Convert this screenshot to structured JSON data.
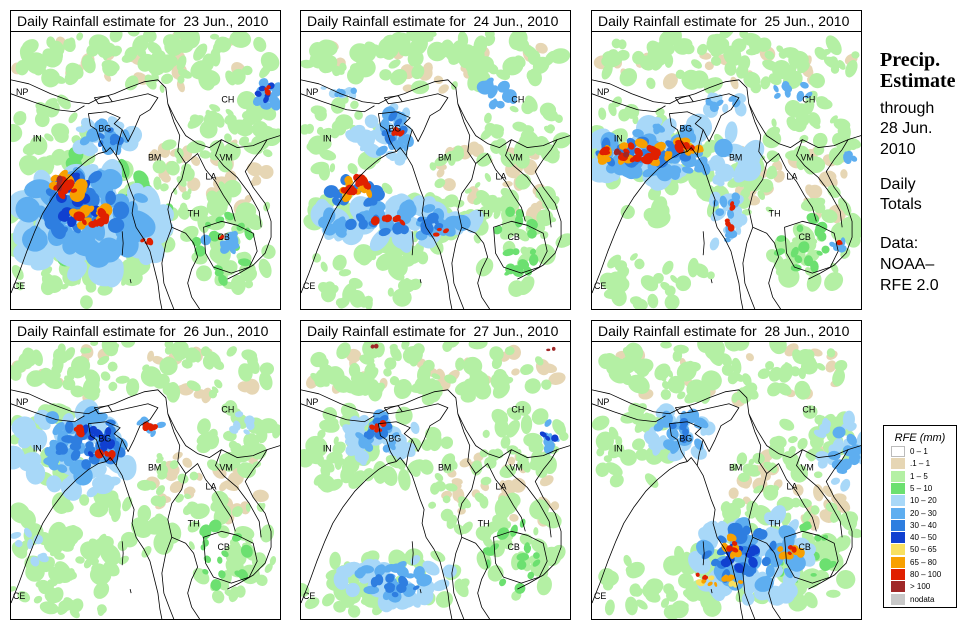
{
  "panels": [
    {
      "title": "Daily Rainfall estimate for  23 Jun., 2010"
    },
    {
      "title": "Daily Rainfall estimate for  24 Jun., 2010"
    },
    {
      "title": "Daily Rainfall estimate for  25 Jun., 2010"
    },
    {
      "title": "Daily Rainfall estimate for  26 Jun., 2010"
    },
    {
      "title": "Daily Rainfall estimate for  27 Jun., 2010"
    },
    {
      "title": "Daily Rainfall estimate for  28 Jun., 2010"
    }
  ],
  "map_labels": [
    "NP",
    "CH",
    "IN",
    "BG",
    "BM",
    "VM",
    "LA",
    "TH",
    "CB",
    "CE"
  ],
  "sidebar": {
    "heading_line1": "Precip.",
    "heading_line2": "Estimate",
    "through": "through",
    "date_line1": "28 Jun.",
    "date_line2": "2010",
    "daily": "Daily",
    "totals": "Totals",
    "data_label": "Data:",
    "source_line1": "NOAA–",
    "source_line2": "RFE 2.0"
  },
  "legend": {
    "title": "RFE (mm)",
    "entries": [
      {
        "label": "0 – 1",
        "color": "#ffffff"
      },
      {
        "label": ".1 – 1",
        "color": "#e6d6b4"
      },
      {
        "label": "1 – 5",
        "color": "#b4f0a4"
      },
      {
        "label": "5 – 10",
        "color": "#6ce070"
      },
      {
        "label": "10 – 20",
        "color": "#a8d8f8"
      },
      {
        "label": "20 – 30",
        "color": "#5eaef0"
      },
      {
        "label": "30 – 40",
        "color": "#2e7ee0"
      },
      {
        "label": "40 – 50",
        "color": "#1040d0"
      },
      {
        "label": "50 – 65",
        "color": "#f8e060"
      },
      {
        "label": "65 – 80",
        "color": "#f8a000"
      },
      {
        "label": "80 – 100",
        "color": "#e02000"
      },
      {
        "label": "> 100",
        "color": "#a02828"
      },
      {
        "label": "nodata",
        "color": "#c8c8c8"
      }
    ]
  }
}
